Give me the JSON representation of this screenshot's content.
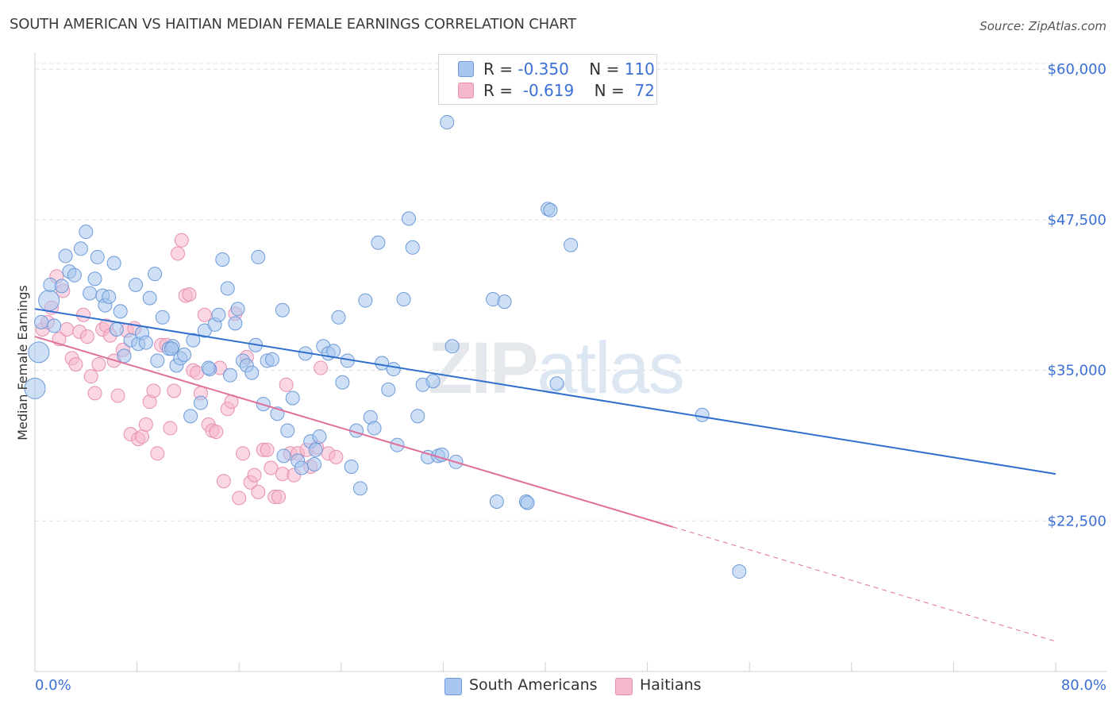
{
  "header": {
    "title": "SOUTH AMERICAN VS HAITIAN MEDIAN FEMALE EARNINGS CORRELATION CHART",
    "source": "Source: ZipAtlas.com"
  },
  "legend": {
    "rows": [
      {
        "r_label": "R =",
        "r_value": "-0.350",
        "n_label": "N =",
        "n_value": "110"
      },
      {
        "r_label": "R =",
        "r_value": "-0.619",
        "n_label": "N =",
        "n_value": "72"
      }
    ]
  },
  "bottom_legend": [
    "South Americans",
    "Haitians"
  ],
  "watermark": "ZIPatlas",
  "colors": {
    "south_american_fill": "#a8c6ef",
    "south_american_stroke": "#6c9ad8",
    "south_american_line": "#2e6fce",
    "haitian_fill": "#f5b7cc",
    "haitian_stroke": "#e690af",
    "haitian_line": "#e0709a",
    "tick_label": "#3b6fd4"
  },
  "chart_data": {
    "type": "scatter",
    "title": "SOUTH AMERICAN VS HAITIAN MEDIAN FEMALE EARNINGS CORRELATION CHART",
    "xlabel": "",
    "ylabel": "Median Female Earnings",
    "xlim": [
      0,
      80
    ],
    "ylim": [
      10000,
      61000
    ],
    "x_tick_labels": [
      "0.0%",
      "80.0%"
    ],
    "y_ticks": [
      22500,
      35000,
      47500,
      60000
    ],
    "y_tick_labels": [
      "$22,500",
      "$35,000",
      "$47,500",
      "$60,000"
    ],
    "grid": true,
    "series": [
      {
        "name": "South Americans",
        "stats": {
          "R": -0.35,
          "N": 110
        },
        "trend": {
          "x": [
            0,
            80
          ],
          "y": [
            40100,
            26400
          ]
        },
        "points": [
          [
            0.0,
            33500
          ],
          [
            0.3,
            36500
          ],
          [
            0.5,
            39000
          ],
          [
            1.1,
            40800
          ],
          [
            1.2,
            42100
          ],
          [
            1.5,
            38700
          ],
          [
            2.1,
            42000
          ],
          [
            2.4,
            44500
          ],
          [
            2.7,
            43200
          ],
          [
            3.1,
            42900
          ],
          [
            3.6,
            45100
          ],
          [
            4.0,
            46500
          ],
          [
            4.3,
            41400
          ],
          [
            4.7,
            42600
          ],
          [
            4.9,
            44400
          ],
          [
            5.3,
            41200
          ],
          [
            5.5,
            40400
          ],
          [
            5.8,
            41100
          ],
          [
            6.2,
            43900
          ],
          [
            6.4,
            38400
          ],
          [
            6.7,
            39900
          ],
          [
            7.0,
            36200
          ],
          [
            7.5,
            37500
          ],
          [
            7.9,
            42100
          ],
          [
            8.1,
            37200
          ],
          [
            8.4,
            38100
          ],
          [
            8.7,
            37300
          ],
          [
            9.0,
            41000
          ],
          [
            9.4,
            43000
          ],
          [
            9.6,
            35800
          ],
          [
            10.0,
            39400
          ],
          [
            10.5,
            36800
          ],
          [
            10.8,
            37000
          ],
          [
            11.1,
            35400
          ],
          [
            11.4,
            36000
          ],
          [
            11.7,
            36300
          ],
          [
            12.2,
            31200
          ],
          [
            12.4,
            37500
          ],
          [
            13.0,
            32300
          ],
          [
            13.3,
            38300
          ],
          [
            13.7,
            35100
          ],
          [
            14.1,
            38800
          ],
          [
            14.4,
            39600
          ],
          [
            14.7,
            44200
          ],
          [
            15.1,
            41800
          ],
          [
            15.3,
            34600
          ],
          [
            15.7,
            38900
          ],
          [
            15.9,
            40100
          ],
          [
            16.3,
            35800
          ],
          [
            16.6,
            35400
          ],
          [
            17.0,
            34800
          ],
          [
            17.3,
            37100
          ],
          [
            17.5,
            44400
          ],
          [
            17.9,
            32200
          ],
          [
            18.2,
            35800
          ],
          [
            18.6,
            35900
          ],
          [
            19.0,
            31400
          ],
          [
            19.4,
            40000
          ],
          [
            19.8,
            30000
          ],
          [
            20.2,
            32700
          ],
          [
            20.6,
            27500
          ],
          [
            20.9,
            26900
          ],
          [
            21.2,
            36400
          ],
          [
            21.6,
            29100
          ],
          [
            21.9,
            27200
          ],
          [
            22.3,
            29500
          ],
          [
            22.6,
            37000
          ],
          [
            23.0,
            36400
          ],
          [
            23.4,
            36600
          ],
          [
            23.8,
            39400
          ],
          [
            24.1,
            34000
          ],
          [
            24.5,
            35800
          ],
          [
            24.8,
            27000
          ],
          [
            25.2,
            30000
          ],
          [
            25.5,
            25200
          ],
          [
            25.9,
            40800
          ],
          [
            26.3,
            31100
          ],
          [
            26.6,
            30200
          ],
          [
            26.9,
            45600
          ],
          [
            27.2,
            35600
          ],
          [
            27.7,
            33400
          ],
          [
            28.1,
            35100
          ],
          [
            28.4,
            28800
          ],
          [
            28.9,
            40900
          ],
          [
            29.3,
            47600
          ],
          [
            29.6,
            45200
          ],
          [
            30.0,
            31200
          ],
          [
            30.4,
            33800
          ],
          [
            30.8,
            27800
          ],
          [
            31.2,
            34100
          ],
          [
            31.6,
            27900
          ],
          [
            31.9,
            28000
          ],
          [
            32.3,
            55600
          ],
          [
            32.7,
            37000
          ],
          [
            33.0,
            27400
          ],
          [
            35.9,
            40900
          ],
          [
            36.2,
            24100
          ],
          [
            36.8,
            40700
          ],
          [
            38.5,
            24100
          ],
          [
            38.6,
            24000
          ],
          [
            40.2,
            48400
          ],
          [
            40.4,
            48300
          ],
          [
            40.9,
            33900
          ],
          [
            42.0,
            45400
          ],
          [
            52.3,
            31300
          ],
          [
            55.2,
            18300
          ],
          [
            13.6,
            35200
          ],
          [
            22.0,
            28400
          ],
          [
            19.5,
            27900
          ],
          [
            10.7,
            36800
          ]
        ]
      },
      {
        "name": "Haitians",
        "stats": {
          "R": -0.619,
          "N": 72
        },
        "trend": {
          "x": [
            0,
            50
          ],
          "y": [
            37800,
            22000
          ]
        },
        "trend_dashed": {
          "x": [
            50,
            80
          ],
          "y": [
            22000,
            12500
          ]
        },
        "points": [
          [
            0.6,
            38400
          ],
          [
            1.0,
            39000
          ],
          [
            1.3,
            40200
          ],
          [
            1.7,
            42800
          ],
          [
            1.9,
            37600
          ],
          [
            2.2,
            41600
          ],
          [
            2.5,
            38400
          ],
          [
            2.9,
            36000
          ],
          [
            3.2,
            35500
          ],
          [
            3.5,
            38200
          ],
          [
            3.8,
            39600
          ],
          [
            4.1,
            37800
          ],
          [
            4.4,
            34500
          ],
          [
            4.7,
            33100
          ],
          [
            5.0,
            35500
          ],
          [
            5.3,
            38400
          ],
          [
            5.6,
            38700
          ],
          [
            5.9,
            37900
          ],
          [
            6.2,
            35800
          ],
          [
            6.5,
            32900
          ],
          [
            6.9,
            36700
          ],
          [
            7.2,
            38300
          ],
          [
            7.5,
            29700
          ],
          [
            7.8,
            38500
          ],
          [
            8.1,
            29300
          ],
          [
            8.4,
            29500
          ],
          [
            8.7,
            30500
          ],
          [
            9.0,
            32400
          ],
          [
            9.3,
            33300
          ],
          [
            9.6,
            28100
          ],
          [
            9.9,
            37100
          ],
          [
            10.3,
            37100
          ],
          [
            10.6,
            30200
          ],
          [
            10.9,
            33300
          ],
          [
            11.2,
            44700
          ],
          [
            11.5,
            45800
          ],
          [
            11.8,
            41200
          ],
          [
            12.1,
            41300
          ],
          [
            12.4,
            35000
          ],
          [
            12.7,
            34800
          ],
          [
            13.0,
            33100
          ],
          [
            13.3,
            39600
          ],
          [
            13.6,
            30500
          ],
          [
            13.9,
            30000
          ],
          [
            14.2,
            29900
          ],
          [
            14.5,
            35200
          ],
          [
            14.8,
            25800
          ],
          [
            15.1,
            31800
          ],
          [
            15.4,
            32400
          ],
          [
            15.7,
            39700
          ],
          [
            16.0,
            24400
          ],
          [
            16.3,
            28100
          ],
          [
            16.6,
            36100
          ],
          [
            16.9,
            25700
          ],
          [
            17.2,
            26300
          ],
          [
            17.5,
            24900
          ],
          [
            17.9,
            28400
          ],
          [
            18.2,
            28400
          ],
          [
            18.5,
            26900
          ],
          [
            18.8,
            24500
          ],
          [
            19.1,
            24500
          ],
          [
            19.4,
            26400
          ],
          [
            19.7,
            33800
          ],
          [
            20.0,
            28100
          ],
          [
            20.3,
            26300
          ],
          [
            20.6,
            28100
          ],
          [
            21.3,
            28400
          ],
          [
            21.6,
            27000
          ],
          [
            22.1,
            28600
          ],
          [
            22.4,
            35200
          ],
          [
            23.0,
            28100
          ],
          [
            23.6,
            27800
          ]
        ]
      }
    ]
  }
}
